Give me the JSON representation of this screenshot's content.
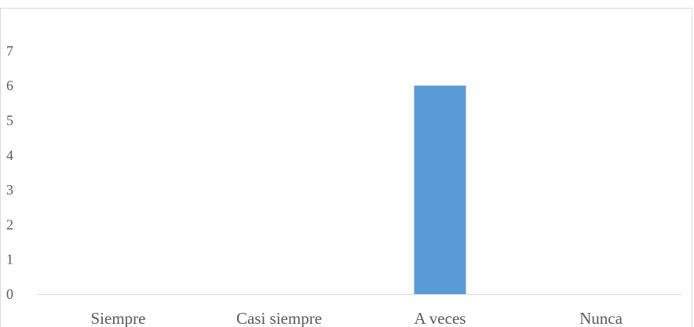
{
  "chart_data": {
    "type": "bar",
    "categories": [
      "Siempre",
      "Casi siempre",
      "A veces",
      "Nunca"
    ],
    "values": [
      0,
      0,
      6,
      0
    ],
    "ylim": [
      0,
      7
    ],
    "yticks": [
      "0",
      "1",
      "2",
      "3",
      "4",
      "5",
      "6",
      "7"
    ],
    "grid": false,
    "legend": "none",
    "bar_color": "#5b9bd5",
    "axis_color": "#d9d9d9",
    "text_color": "#595959"
  }
}
